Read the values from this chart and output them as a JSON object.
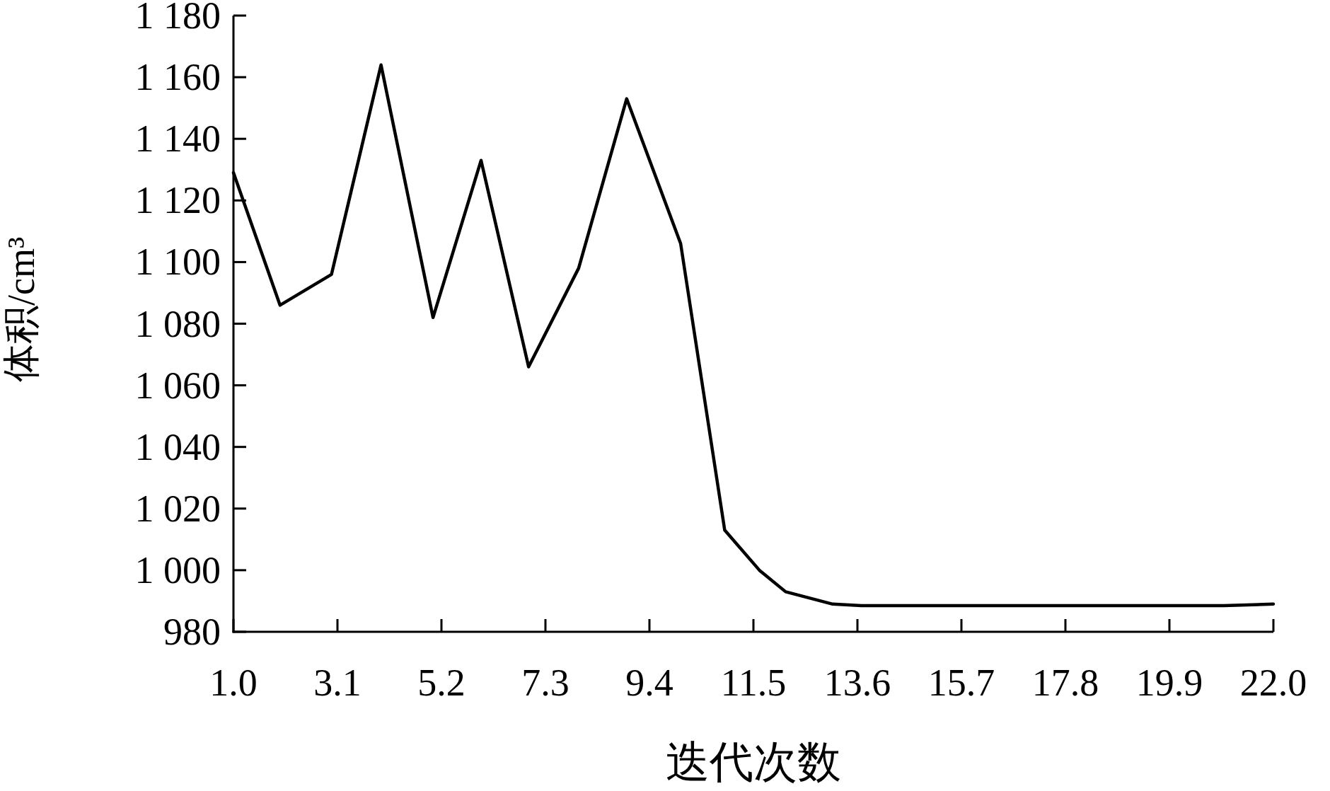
{
  "chart_data": {
    "type": "line",
    "xlabel": "迭代次数",
    "ylabel": "体积/cm³",
    "x": [
      1.0,
      1.94,
      2.98,
      3.98,
      5.03,
      6.0,
      6.96,
      7.97,
      8.94,
      10.03,
      10.92,
      11.62,
      12.15,
      13.1,
      13.68,
      15.0,
      17.0,
      19.0,
      21.0,
      22.0
    ],
    "series": [
      {
        "color": "#000000",
        "values": [
          1129,
          1086,
          1096,
          1164,
          1082,
          1133,
          1066,
          1098,
          1153,
          1106,
          1013,
          1000,
          993,
          989,
          988.5,
          988.5,
          988.5,
          988.5,
          988.5,
          989
        ]
      }
    ],
    "xlim": [
      1.0,
      22.0
    ],
    "ylim": [
      980,
      1180
    ],
    "xticks": [
      {
        "value": 1.0,
        "label": "1.0"
      },
      {
        "value": 3.1,
        "label": "3.1"
      },
      {
        "value": 5.2,
        "label": "5.2"
      },
      {
        "value": 7.3,
        "label": "7.3"
      },
      {
        "value": 9.4,
        "label": "9.4"
      },
      {
        "value": 11.5,
        "label": "11.5"
      },
      {
        "value": 13.6,
        "label": "13.6"
      },
      {
        "value": 15.7,
        "label": "15.7"
      },
      {
        "value": 17.8,
        "label": "17.8"
      },
      {
        "value": 19.9,
        "label": "19.9"
      },
      {
        "value": 22.0,
        "label": "22.0"
      }
    ],
    "yticks": [
      980,
      {
        "value": 1000,
        "label": "1 000"
      },
      {
        "value": 1020,
        "label": "1 020"
      },
      {
        "value": 1040,
        "label": "1 040"
      },
      {
        "value": 1060,
        "label": "1 060"
      },
      {
        "value": 1080,
        "label": "1 080"
      },
      {
        "value": 1100,
        "label": "1 100"
      },
      {
        "value": 1120,
        "label": "1 120"
      },
      {
        "value": 1140,
        "label": "1 140"
      },
      {
        "value": 1160,
        "label": "1 160"
      },
      {
        "value": 1180,
        "label": "1 180"
      }
    ],
    "grid": false
  }
}
